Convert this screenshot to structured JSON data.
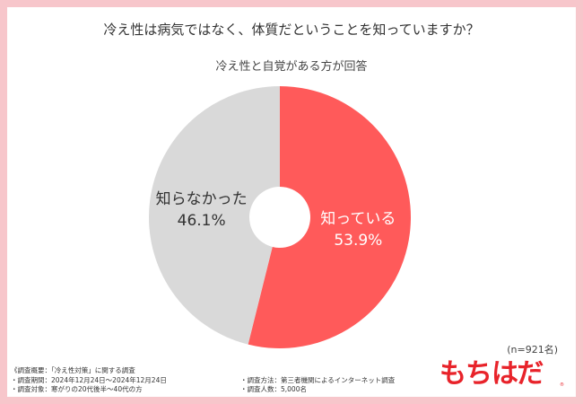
{
  "title": "冷え性は病気ではなく、体質だということを知っていますか？",
  "subtitle": "冷え性と自覚がある方が回答",
  "chart_data": {
    "type": "pie",
    "donut": true,
    "slices": [
      {
        "label": "知っている",
        "value": 53.9,
        "display": "53.9%",
        "color": "#ff5a5a",
        "text_color": "#ffffff"
      },
      {
        "label": "知らなかった",
        "value": 46.1,
        "display": "46.1%",
        "color": "#d9d9d9",
        "text_color": "#333333"
      }
    ]
  },
  "sample_size": "(n=921名)",
  "notes": {
    "overview": "《調査概要：「冷え性対策」に関する調査",
    "period": "・調査期間：2024年12月24日～2024年12月24日",
    "target": "・調査対象：寒がりの20代後半～40代の方",
    "method": "・調査方法：第三者機関によるインターネット調査",
    "respondents": "・調査人数：5,000名"
  },
  "logo": {
    "text": "もちはだ",
    "mark": "®"
  }
}
